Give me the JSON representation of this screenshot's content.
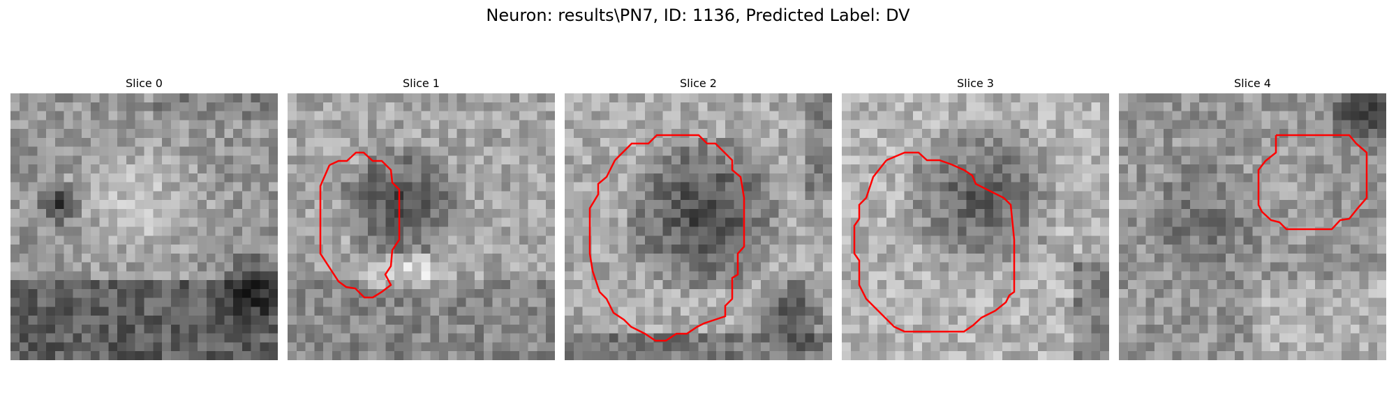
{
  "figure": {
    "suptitle": "Neuron: results\\PN7, ID: 1136, Predicted Label: DV"
  },
  "panels": [
    {
      "title": "Slice 0"
    },
    {
      "title": "Slice 1"
    },
    {
      "title": "Slice 2"
    },
    {
      "title": "Slice 3"
    },
    {
      "title": "Slice 4"
    }
  ],
  "contour_color": "#ff0000"
}
